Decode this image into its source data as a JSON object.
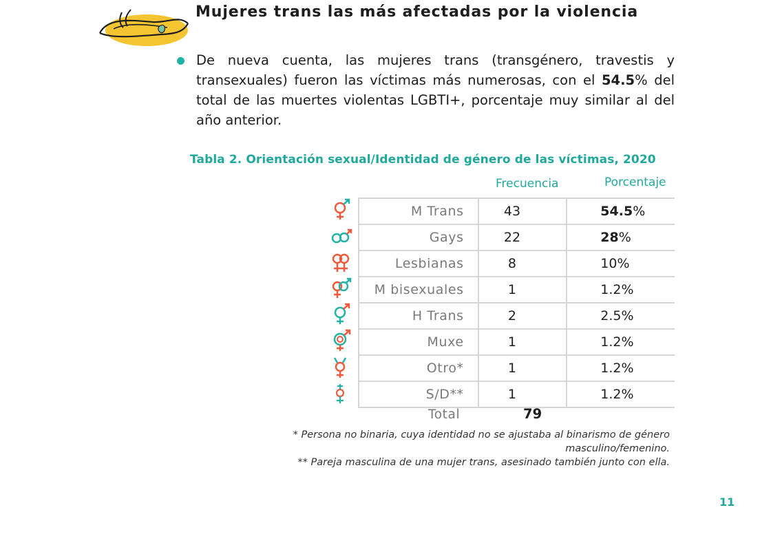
{
  "header": {
    "title": "Mujeres trans las más afectadas por la violencia"
  },
  "bullet": {
    "text_before": "De nueva cuenta, las mujeres trans (transgénero, travestis y transexuales) fueron las víctimas más numerosas, con el ",
    "highlight": "54.5",
    "text_after": "% del total de las muertes violentas LGBTI+, porcentaje muy similar al del año anterior."
  },
  "table": {
    "caption": "Tabla 2. Orientación sexual/Identidad de género de las víctimas, 2020",
    "columns": {
      "frequency": "Frecuencia",
      "percentage": "Porcentaje"
    },
    "rows": [
      {
        "icon": "trans-woman-icon",
        "label": "M Trans",
        "frequency": "43",
        "pct_bold": "54.5",
        "pct_rest": "%"
      },
      {
        "icon": "gay-men-icon",
        "label": "Gays",
        "frequency": "22",
        "pct_bold": "28",
        "pct_rest": "%"
      },
      {
        "icon": "lesbian-icon",
        "label": "Lesbianas",
        "frequency": "8",
        "pct_bold": "",
        "pct_rest": "10%"
      },
      {
        "icon": "bisexual-woman-icon",
        "label": "M bisexuales",
        "frequency": "1",
        "pct_bold": "",
        "pct_rest": "1.2%"
      },
      {
        "icon": "trans-man-icon",
        "label": "H Trans",
        "frequency": "2",
        "pct_bold": "",
        "pct_rest": "2.5%"
      },
      {
        "icon": "muxe-icon",
        "label": "Muxe",
        "frequency": "1",
        "pct_bold": "",
        "pct_rest": "1.2%"
      },
      {
        "icon": "other-gender-icon",
        "label": "Otro*",
        "frequency": "1",
        "pct_bold": "",
        "pct_rest": "1.2%"
      },
      {
        "icon": "no-data-gender-icon",
        "label": "S/D**",
        "frequency": "1",
        "pct_bold": "",
        "pct_rest": "1.2%"
      }
    ],
    "total_label": "Total",
    "total_value": "79"
  },
  "footnotes": {
    "note1": "* Persona no binaria, cuya identidad no se ajustaba al binarismo de género masculino/femenino.",
    "note2": "** Pareja masculina de una mujer trans, asesinado también junto con ella."
  },
  "page_number": "11",
  "colors": {
    "teal": "#21b3a6",
    "coral": "#f05a3a",
    "yellow": "#f2c230"
  }
}
